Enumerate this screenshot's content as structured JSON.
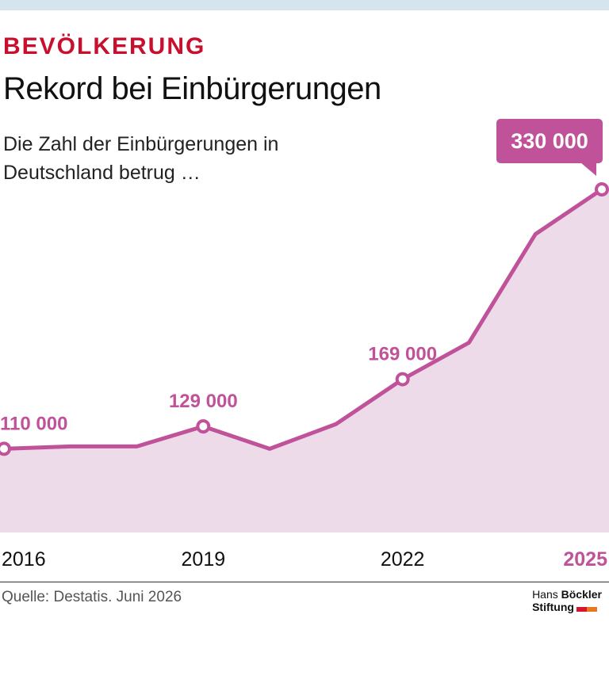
{
  "header": {
    "kicker": "BEVÖLKERUNG",
    "title": "Rekord bei Einbürgerungen",
    "subtitle": "Die Zahl der Einbürgerungen in Deutschland betrug …"
  },
  "footer": {
    "source": "Quelle: Destatis. Juni 2026",
    "logo_line1_a": "Hans ",
    "logo_line1_b": "Böckler",
    "logo_line2": "Stiftung"
  },
  "colors": {
    "accent": "#c0529a",
    "area": "#eedbe9",
    "kicker": "#c8102e",
    "logo_red": "#d7152b",
    "logo_orange": "#e87722"
  },
  "chart_data": {
    "type": "area",
    "x": [
      2016,
      2017,
      2018,
      2019,
      2020,
      2021,
      2022,
      2023,
      2024,
      2025
    ],
    "series": [
      {
        "values": [
          110000,
          112000,
          112000,
          129000,
          110000,
          131000,
          169000,
          200000,
          292000,
          330000
        ]
      }
    ],
    "xticks": [
      2016,
      2019,
      2022,
      2025
    ],
    "xtick_labels": [
      "2016",
      "2019",
      "2022",
      "2025"
    ],
    "labels": [
      {
        "x": 2016,
        "text": "110 000"
      },
      {
        "x": 2019,
        "text": "129 000"
      },
      {
        "x": 2022,
        "text": "169 000"
      },
      {
        "x": 2025,
        "text": "330 000",
        "callout": true
      }
    ],
    "ylim": [
      0,
      330000
    ],
    "grid": false
  }
}
